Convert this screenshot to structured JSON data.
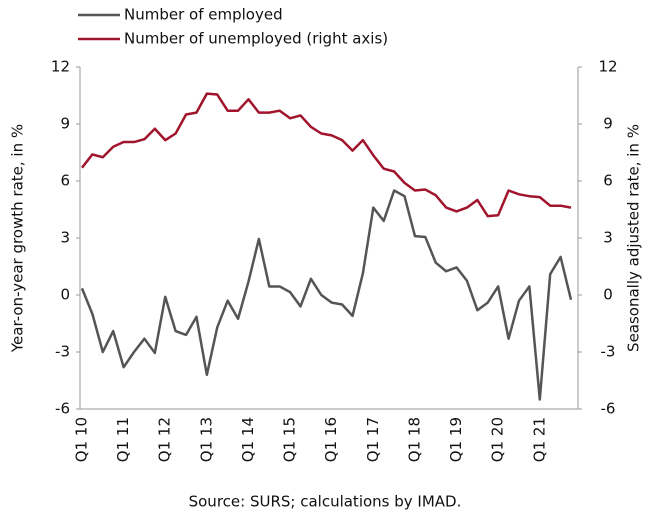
{
  "chart_data": {
    "type": "line",
    "source": "Source: SURS; calculations by IMAD.",
    "y_label": "Year-on-year growth rate, in %",
    "y2_label": "Seasonally adjusted rate, in %",
    "categories": [
      "Q1 10",
      null,
      null,
      null,
      "Q1 11",
      null,
      null,
      null,
      "Q1 12",
      null,
      null,
      null,
      "Q1 13",
      null,
      null,
      null,
      "Q1 14",
      null,
      null,
      null,
      "Q1 15",
      null,
      null,
      null,
      "Q1 16",
      null,
      null,
      null,
      "Q1 17",
      null,
      null,
      null,
      "Q1 18",
      null,
      null,
      null,
      "Q1 19",
      null,
      null,
      null,
      "Q1 20",
      null,
      null,
      null,
      "Q1 21",
      null,
      null,
      null
    ],
    "series": [
      {
        "name": "Number of employed",
        "color": "#555555",
        "values": [
          0.35,
          -1.0,
          -3.0,
          -1.9,
          -3.8,
          -3.0,
          -2.3,
          -3.05,
          -0.1,
          -1.9,
          -2.1,
          -1.15,
          -4.2,
          -1.7,
          -0.3,
          -1.25,
          0.7,
          2.95,
          0.45,
          0.45,
          0.15,
          -0.6,
          0.85,
          0.0,
          -0.4,
          -0.5,
          -1.1,
          1.15,
          4.6,
          3.9,
          5.5,
          5.2,
          3.1,
          3.05,
          1.7,
          1.25,
          1.45,
          0.75,
          -0.8,
          -0.4,
          0.45,
          -2.3,
          -0.3,
          0.45,
          -5.5,
          1.1,
          2.0,
          -0.25
        ]
      },
      {
        "name": "Number of unemployed (right axis)",
        "color": "#a0142c",
        "axis": "y2",
        "values": [
          6.7,
          7.4,
          7.25,
          7.8,
          8.05,
          8.05,
          8.2,
          8.75,
          8.15,
          8.5,
          9.5,
          9.6,
          10.6,
          10.55,
          9.7,
          9.7,
          10.3,
          9.6,
          9.6,
          9.7,
          9.3,
          9.45,
          8.85,
          8.5,
          8.4,
          8.15,
          7.6,
          8.15,
          7.35,
          6.65,
          6.5,
          5.9,
          5.5,
          5.55,
          5.25,
          4.6,
          4.4,
          4.6,
          5.0,
          4.15,
          4.2,
          5.5,
          5.3,
          5.2,
          5.15,
          4.7,
          4.7,
          4.6
        ]
      }
    ],
    "ylim": [
      -6,
      12
    ],
    "yticks": [
      12,
      9,
      6,
      3,
      0,
      -3,
      -6
    ],
    "y2lim": [
      -6,
      12
    ],
    "y2ticks": [
      12,
      9,
      6,
      3,
      0,
      -3,
      -6
    ],
    "legend": "top-left"
  }
}
